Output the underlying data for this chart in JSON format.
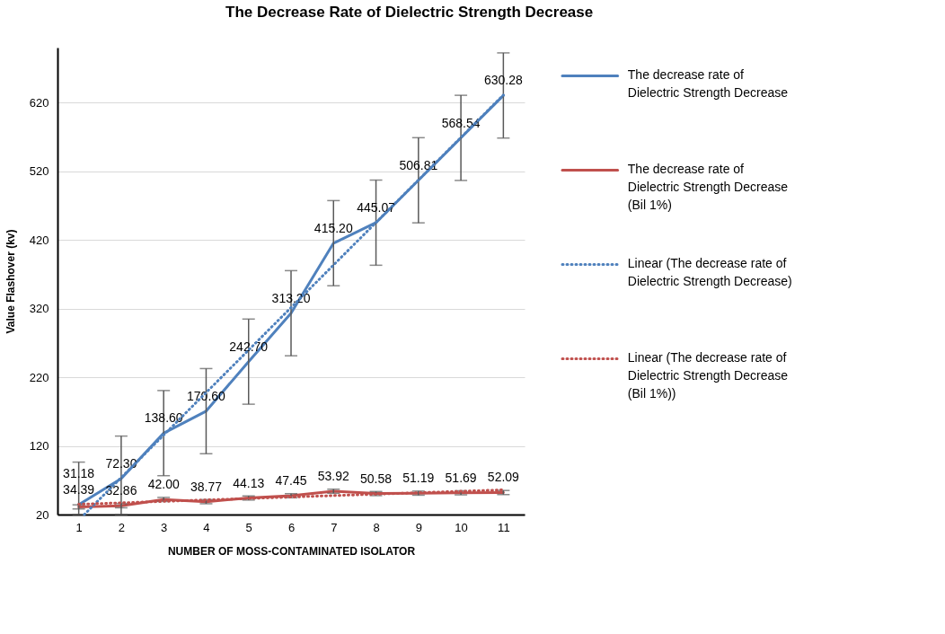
{
  "chart_data": {
    "type": "line",
    "title": "The Decrease Rate of Dielectric Strength Decrease",
    "xlabel": "NUMBER OF  MOSS-CONTAMINATED ISOLATOR",
    "ylabel": "Value Flashover (kv)",
    "x": [
      1,
      2,
      3,
      4,
      5,
      6,
      7,
      8,
      9,
      10,
      11
    ],
    "xlim": [
      0.5,
      11.5
    ],
    "xticks": [
      1,
      2,
      3,
      4,
      5,
      6,
      7,
      8,
      9,
      10,
      11
    ],
    "ylim": [
      20,
      700
    ],
    "yticks": [
      20,
      120,
      220,
      320,
      420,
      520,
      620
    ],
    "grid": "y",
    "legend": "right",
    "marker": "none",
    "series": [
      {
        "name": "The decrease rate of  Dielectric Strength Decrease",
        "color": "#4f81bd",
        "line_style": "solid",
        "values": [
          34.39,
          72.3,
          138.6,
          170.6,
          242.7,
          313.2,
          415.2,
          445.07,
          506.81,
          568.54,
          630.28
        ],
        "errors": [
          [
            20,
            96.39
          ],
          [
            20,
            134.3
          ],
          62,
          62,
          62,
          62,
          62,
          62,
          62,
          62,
          62
        ],
        "value_labels": [
          "34.39",
          "72.30",
          "138.60",
          "170.60",
          "242.70",
          "313.20",
          "415.20",
          "445.07",
          "506.81",
          "568.54",
          "630.28"
        ]
      },
      {
        "name": "The decrease rate of  Dielectric Strength Decrease  (Bil 1%)",
        "color": "#c0504d",
        "line_style": "solid",
        "values": [
          31.18,
          32.86,
          42.0,
          38.77,
          44.13,
          47.45,
          53.92,
          50.58,
          51.19,
          51.69,
          52.09
        ],
        "errors": [
          3,
          3,
          3,
          3,
          3,
          3,
          3,
          3,
          3,
          3,
          3
        ],
        "value_labels": [
          "31.18",
          "32.86",
          "42.00",
          "38.77",
          "44.13",
          "47.45",
          "53.92",
          "50.58",
          "51.19",
          "51.69",
          "52.09"
        ]
      },
      {
        "name": "Linear (The decrease rate of Dielectric Strength Decrease)",
        "color": "#4f81bd",
        "line_style": "dotted",
        "x": [
          1.13,
          11
        ],
        "values": [
          20,
          631
        ]
      },
      {
        "name": "Linear (The decrease rate of Dielectric Strength Decrease  (Bil 1%))",
        "color": "#c0504d",
        "line_style": "dotted",
        "x": [
          1,
          11
        ],
        "values": [
          35,
          56
        ]
      }
    ]
  }
}
